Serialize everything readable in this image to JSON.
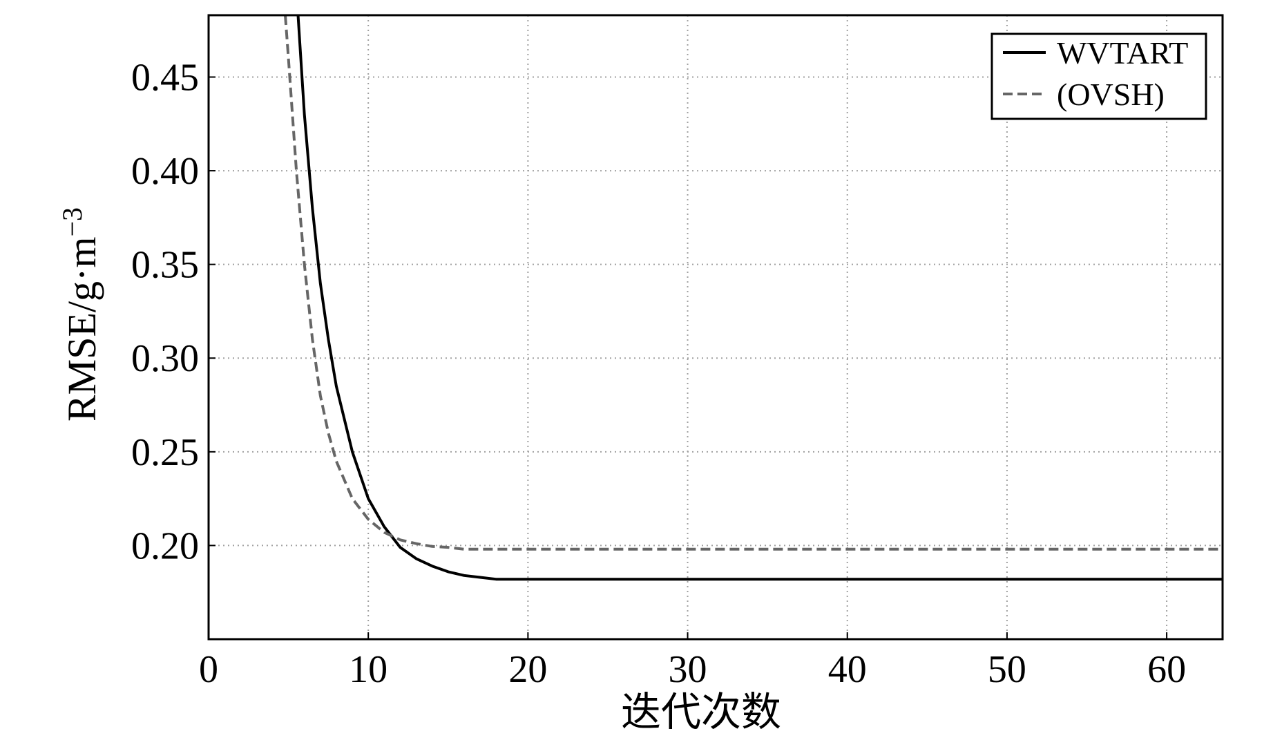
{
  "chart_data": {
    "type": "line",
    "title": "",
    "xlabel": "迭代次数",
    "ylabel": "RMSE/g·m",
    "ylabel_superscript": "−3",
    "xlim": [
      0,
      63.5
    ],
    "ylim": [
      0.15,
      0.483
    ],
    "xticks": [
      0,
      10,
      20,
      30,
      40,
      50,
      60
    ],
    "xtick_labels": [
      "0",
      "10",
      "20",
      "30",
      "40",
      "50",
      "60"
    ],
    "yticks": [
      0.2,
      0.25,
      0.3,
      0.35,
      0.4,
      0.45
    ],
    "ytick_labels": [
      "0.20",
      "0.25",
      "0.30",
      "0.35",
      "0.40",
      "0.45"
    ],
    "grid": true,
    "legend_position": "top-right",
    "series": [
      {
        "name": "WVTART",
        "color": "#000000",
        "style": "solid",
        "x": [
          5.6,
          6.0,
          6.5,
          7.0,
          7.5,
          8.0,
          9.0,
          10.0,
          11.0,
          12.0,
          13.0,
          14.0,
          15.0,
          16.0,
          17.0,
          18.0,
          19.0,
          20.0,
          30.0,
          40.0,
          50.0,
          60.0,
          63.5
        ],
        "y": [
          0.483,
          0.43,
          0.38,
          0.34,
          0.31,
          0.285,
          0.25,
          0.225,
          0.21,
          0.199,
          0.193,
          0.189,
          0.186,
          0.184,
          0.183,
          0.182,
          0.182,
          0.182,
          0.182,
          0.182,
          0.182,
          0.182,
          0.182
        ]
      },
      {
        "name": "(OVSH)",
        "color": "#666666",
        "style": "dashed",
        "x": [
          4.8,
          5.0,
          5.5,
          6.0,
          6.5,
          7.0,
          7.5,
          8.0,
          9.0,
          10.0,
          11.0,
          12.0,
          13.0,
          14.0,
          15.0,
          16.0,
          18.0,
          20.0,
          30.0,
          40.0,
          50.0,
          60.0,
          63.5
        ],
        "y": [
          0.483,
          0.46,
          0.4,
          0.35,
          0.31,
          0.28,
          0.26,
          0.245,
          0.225,
          0.214,
          0.207,
          0.203,
          0.201,
          0.1995,
          0.199,
          0.198,
          0.198,
          0.198,
          0.198,
          0.198,
          0.198,
          0.198,
          0.198
        ]
      }
    ]
  }
}
